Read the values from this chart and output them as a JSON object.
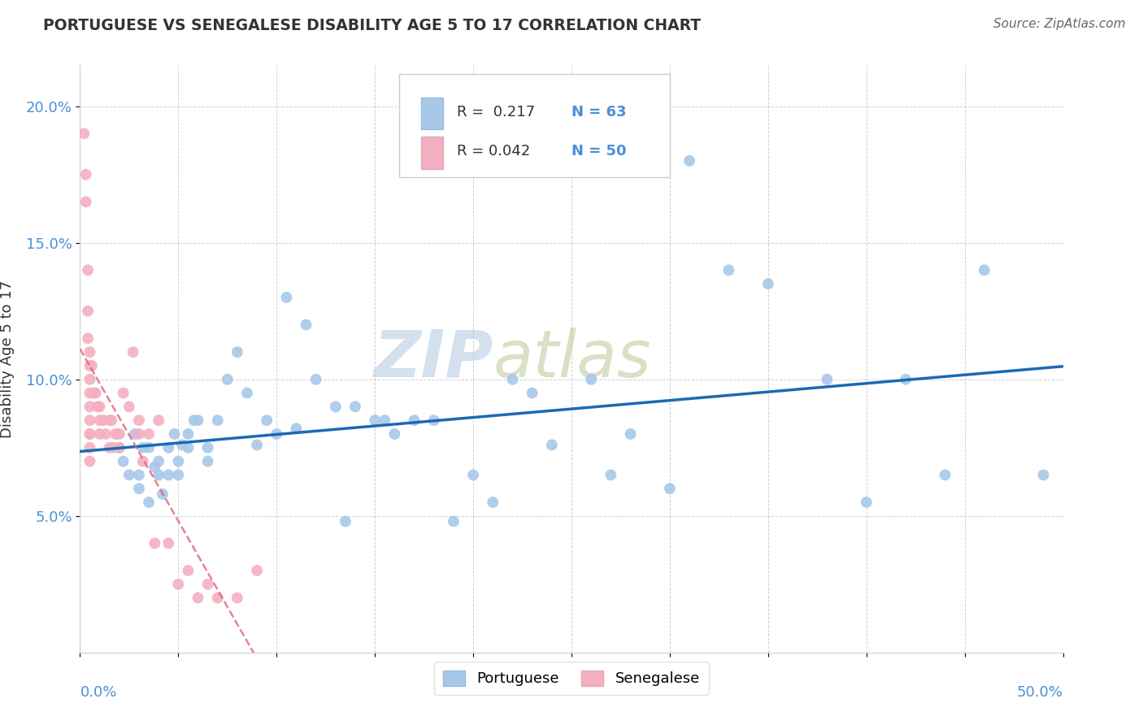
{
  "title": "PORTUGUESE VS SENEGALESE DISABILITY AGE 5 TO 17 CORRELATION CHART",
  "source_text": "Source: ZipAtlas.com",
  "ylabel": "Disability Age 5 to 17",
  "xlim": [
    0.0,
    0.5
  ],
  "ylim": [
    0.0,
    0.215
  ],
  "yticks": [
    0.05,
    0.1,
    0.15,
    0.2
  ],
  "ytick_labels": [
    "5.0%",
    "10.0%",
    "15.0%",
    "20.0%"
  ],
  "xticks": [
    0.0,
    0.05,
    0.1,
    0.15,
    0.2,
    0.25,
    0.3,
    0.35,
    0.4,
    0.45,
    0.5
  ],
  "legend_r_portuguese": "R =  0.217",
  "legend_n_portuguese": "N = 63",
  "legend_r_senegalese": "R = 0.042",
  "legend_n_senegalese": "N = 50",
  "portuguese_color": "#a8c8e8",
  "senegalese_color": "#f4b0c0",
  "trendline_portuguese_color": "#1a6ab5",
  "trendline_senegalese_color": "#e06080",
  "watermark_zip_color": "#b8cfe0",
  "watermark_atlas_color": "#c8d8a0",
  "background_color": "#ffffff",
  "grid_color": "#c8cdd4",
  "title_color": "#333333",
  "tick_label_color": "#4a90d9",
  "portuguese_x": [
    0.02,
    0.022,
    0.025,
    0.028,
    0.03,
    0.03,
    0.032,
    0.035,
    0.035,
    0.038,
    0.04,
    0.04,
    0.042,
    0.045,
    0.045,
    0.048,
    0.05,
    0.05,
    0.052,
    0.055,
    0.055,
    0.058,
    0.06,
    0.065,
    0.065,
    0.07,
    0.075,
    0.08,
    0.085,
    0.09,
    0.095,
    0.1,
    0.105,
    0.11,
    0.115,
    0.12,
    0.13,
    0.135,
    0.14,
    0.15,
    0.155,
    0.16,
    0.17,
    0.18,
    0.19,
    0.2,
    0.21,
    0.22,
    0.23,
    0.24,
    0.26,
    0.27,
    0.28,
    0.3,
    0.31,
    0.33,
    0.35,
    0.38,
    0.4,
    0.42,
    0.44,
    0.46,
    0.49
  ],
  "portuguese_y": [
    0.075,
    0.07,
    0.065,
    0.08,
    0.065,
    0.06,
    0.075,
    0.075,
    0.055,
    0.068,
    0.065,
    0.07,
    0.058,
    0.075,
    0.065,
    0.08,
    0.065,
    0.07,
    0.076,
    0.075,
    0.08,
    0.085,
    0.085,
    0.07,
    0.075,
    0.085,
    0.1,
    0.11,
    0.095,
    0.076,
    0.085,
    0.08,
    0.13,
    0.082,
    0.12,
    0.1,
    0.09,
    0.048,
    0.09,
    0.085,
    0.085,
    0.08,
    0.085,
    0.085,
    0.048,
    0.065,
    0.055,
    0.1,
    0.095,
    0.076,
    0.1,
    0.065,
    0.08,
    0.06,
    0.18,
    0.14,
    0.135,
    0.1,
    0.055,
    0.1,
    0.065,
    0.14,
    0.065
  ],
  "senegalese_x": [
    0.002,
    0.003,
    0.003,
    0.004,
    0.004,
    0.004,
    0.005,
    0.005,
    0.005,
    0.005,
    0.005,
    0.005,
    0.005,
    0.005,
    0.005,
    0.005,
    0.006,
    0.007,
    0.008,
    0.009,
    0.01,
    0.01,
    0.01,
    0.012,
    0.013,
    0.015,
    0.015,
    0.016,
    0.017,
    0.018,
    0.019,
    0.02,
    0.02,
    0.022,
    0.025,
    0.027,
    0.03,
    0.03,
    0.032,
    0.035,
    0.038,
    0.04,
    0.045,
    0.05,
    0.055,
    0.06,
    0.065,
    0.07,
    0.08,
    0.09
  ],
  "senegalese_y": [
    0.19,
    0.175,
    0.165,
    0.14,
    0.125,
    0.115,
    0.11,
    0.105,
    0.1,
    0.095,
    0.09,
    0.085,
    0.08,
    0.08,
    0.075,
    0.07,
    0.105,
    0.095,
    0.095,
    0.09,
    0.09,
    0.085,
    0.08,
    0.085,
    0.08,
    0.085,
    0.075,
    0.085,
    0.075,
    0.08,
    0.08,
    0.075,
    0.08,
    0.095,
    0.09,
    0.11,
    0.08,
    0.085,
    0.07,
    0.08,
    0.04,
    0.085,
    0.04,
    0.025,
    0.03,
    0.02,
    0.025,
    0.02,
    0.02,
    0.03
  ]
}
